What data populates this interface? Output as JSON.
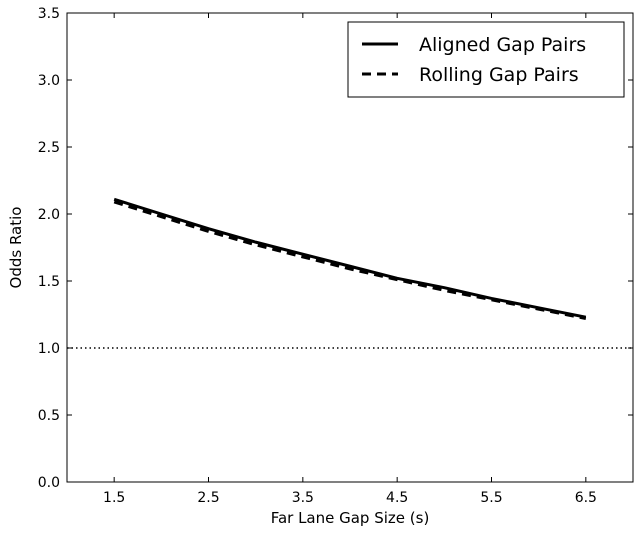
{
  "chart_data": {
    "type": "line",
    "title": "",
    "xlabel": "Far Lane Gap Size (s)",
    "ylabel": "Odds Ratio",
    "xlim": [
      1.0,
      7.0
    ],
    "ylim": [
      0.0,
      3.5
    ],
    "xticks": [
      "1.5",
      "2.5",
      "3.5",
      "4.5",
      "5.5",
      "6.5"
    ],
    "yticks": [
      "0.0",
      "0.5",
      "1.0",
      "1.5",
      "2.0",
      "2.5",
      "3.0",
      "3.5"
    ],
    "grid": false,
    "legend_position": "top-right",
    "reference_line": {
      "y": 1.0,
      "style": "dotted"
    },
    "x": [
      1.5,
      2.0,
      2.5,
      3.0,
      3.5,
      4.0,
      4.5,
      5.0,
      5.5,
      6.0,
      6.5
    ],
    "series": [
      {
        "name": "Aligned Gap Pairs",
        "style": "solid",
        "values": [
          2.11,
          2.0,
          1.89,
          1.79,
          1.7,
          1.61,
          1.52,
          1.45,
          1.37,
          1.3,
          1.23
        ]
      },
      {
        "name": "Rolling Gap Pairs",
        "style": "dashed",
        "values": [
          2.09,
          1.98,
          1.87,
          1.77,
          1.68,
          1.59,
          1.51,
          1.43,
          1.36,
          1.29,
          1.22
        ]
      }
    ]
  }
}
